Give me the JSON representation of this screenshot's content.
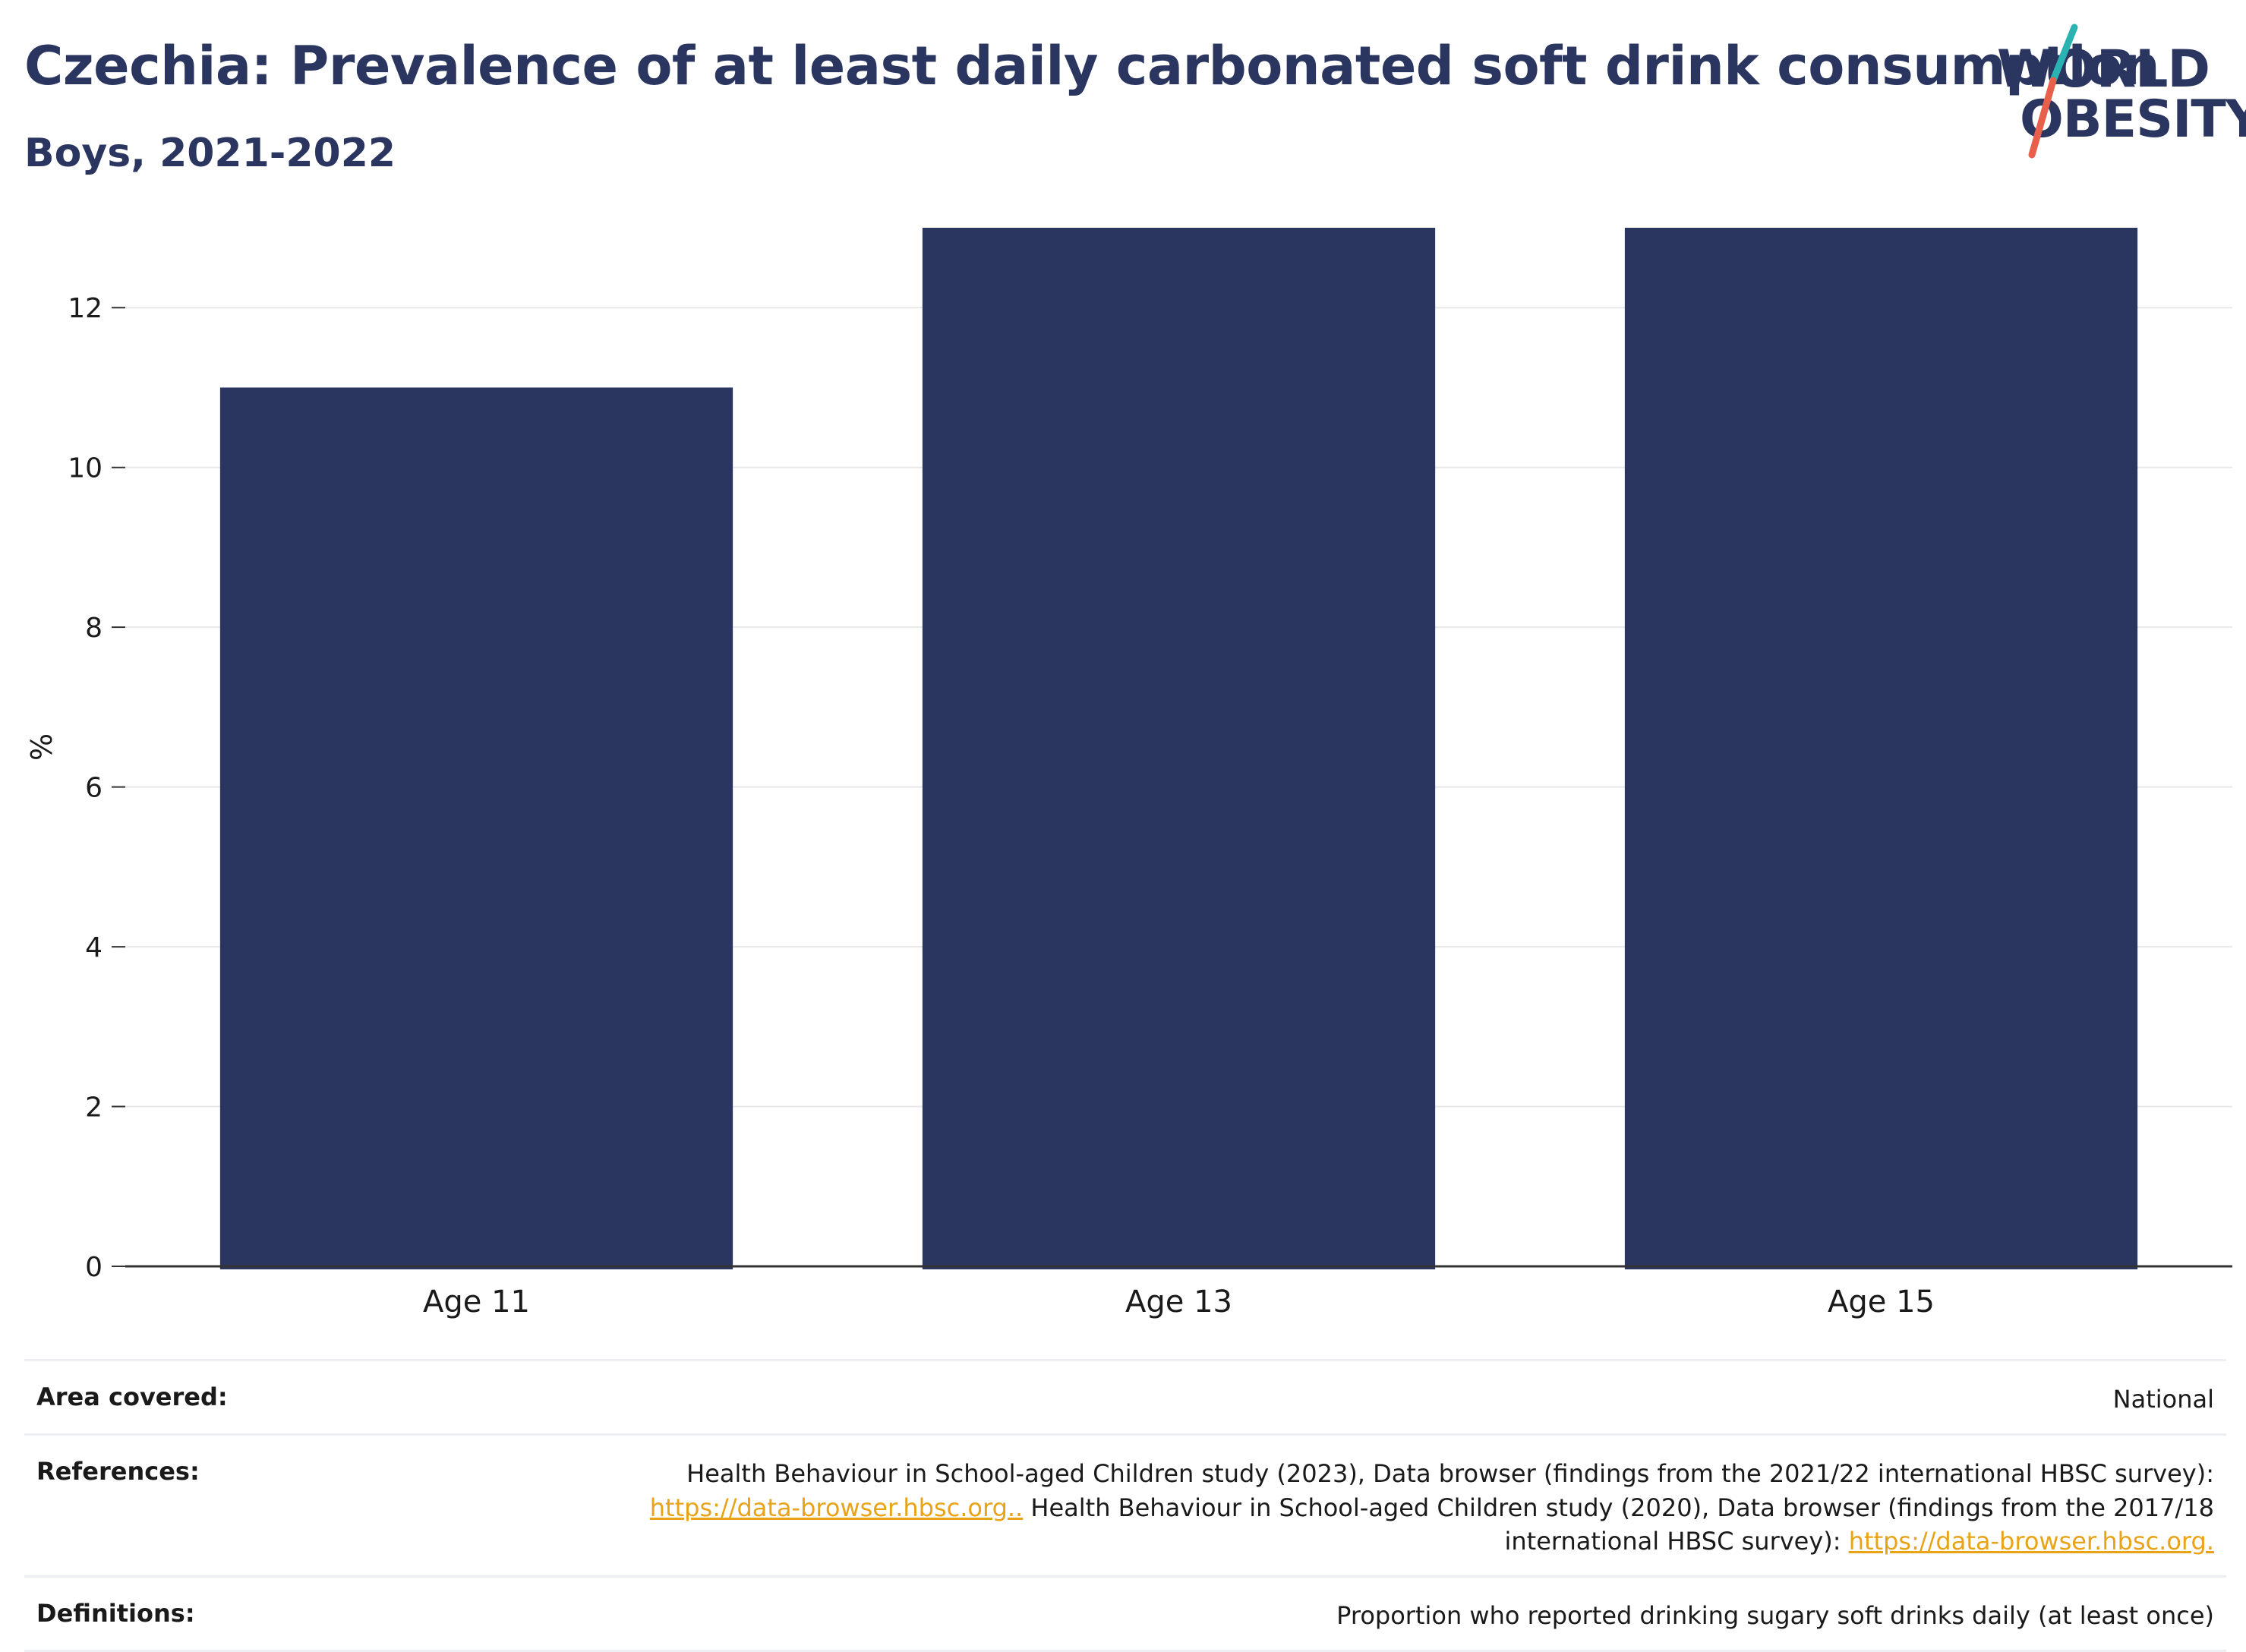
{
  "header": {
    "title": "Czechia: Prevalence of at least daily carbonated soft drink consumption",
    "subtitle": "Boys, 2021-2022"
  },
  "logo": {
    "line1": "WORLD",
    "line2": "OBESITY",
    "colors": {
      "text": "#2a3560",
      "slash_top": "#2ab3b0",
      "slash_bottom": "#e8604c"
    }
  },
  "chart_data": {
    "type": "bar",
    "categories": [
      "Age 11",
      "Age 13",
      "Age 15"
    ],
    "values": [
      11,
      13,
      13
    ],
    "ylabel": "%",
    "ylim": [
      0,
      13
    ],
    "yticks": [
      0,
      2,
      4,
      6,
      8,
      10,
      12
    ],
    "grid": true,
    "bar_color": "#2a3560"
  },
  "meta": {
    "area_label": "Area covered:",
    "area_value": "National",
    "references_label": "References:",
    "ref_text_1": "Health Behaviour in School-aged Children study (2023), Data browser (findings from the 2021/22 international HBSC survey):",
    "ref_link_1": "https://data-browser.hbsc.org..",
    "ref_text_2": " Health Behaviour in School-aged Children study (2020), Data browser (findings from the 2017/18 international HBSC survey): ",
    "ref_link_2": "https://data-browser.hbsc.org.",
    "definitions_label": "Definitions:",
    "definitions_value": "Proportion who reported drinking sugary soft drinks daily (at least once)",
    "link_color": "#e8a317"
  }
}
